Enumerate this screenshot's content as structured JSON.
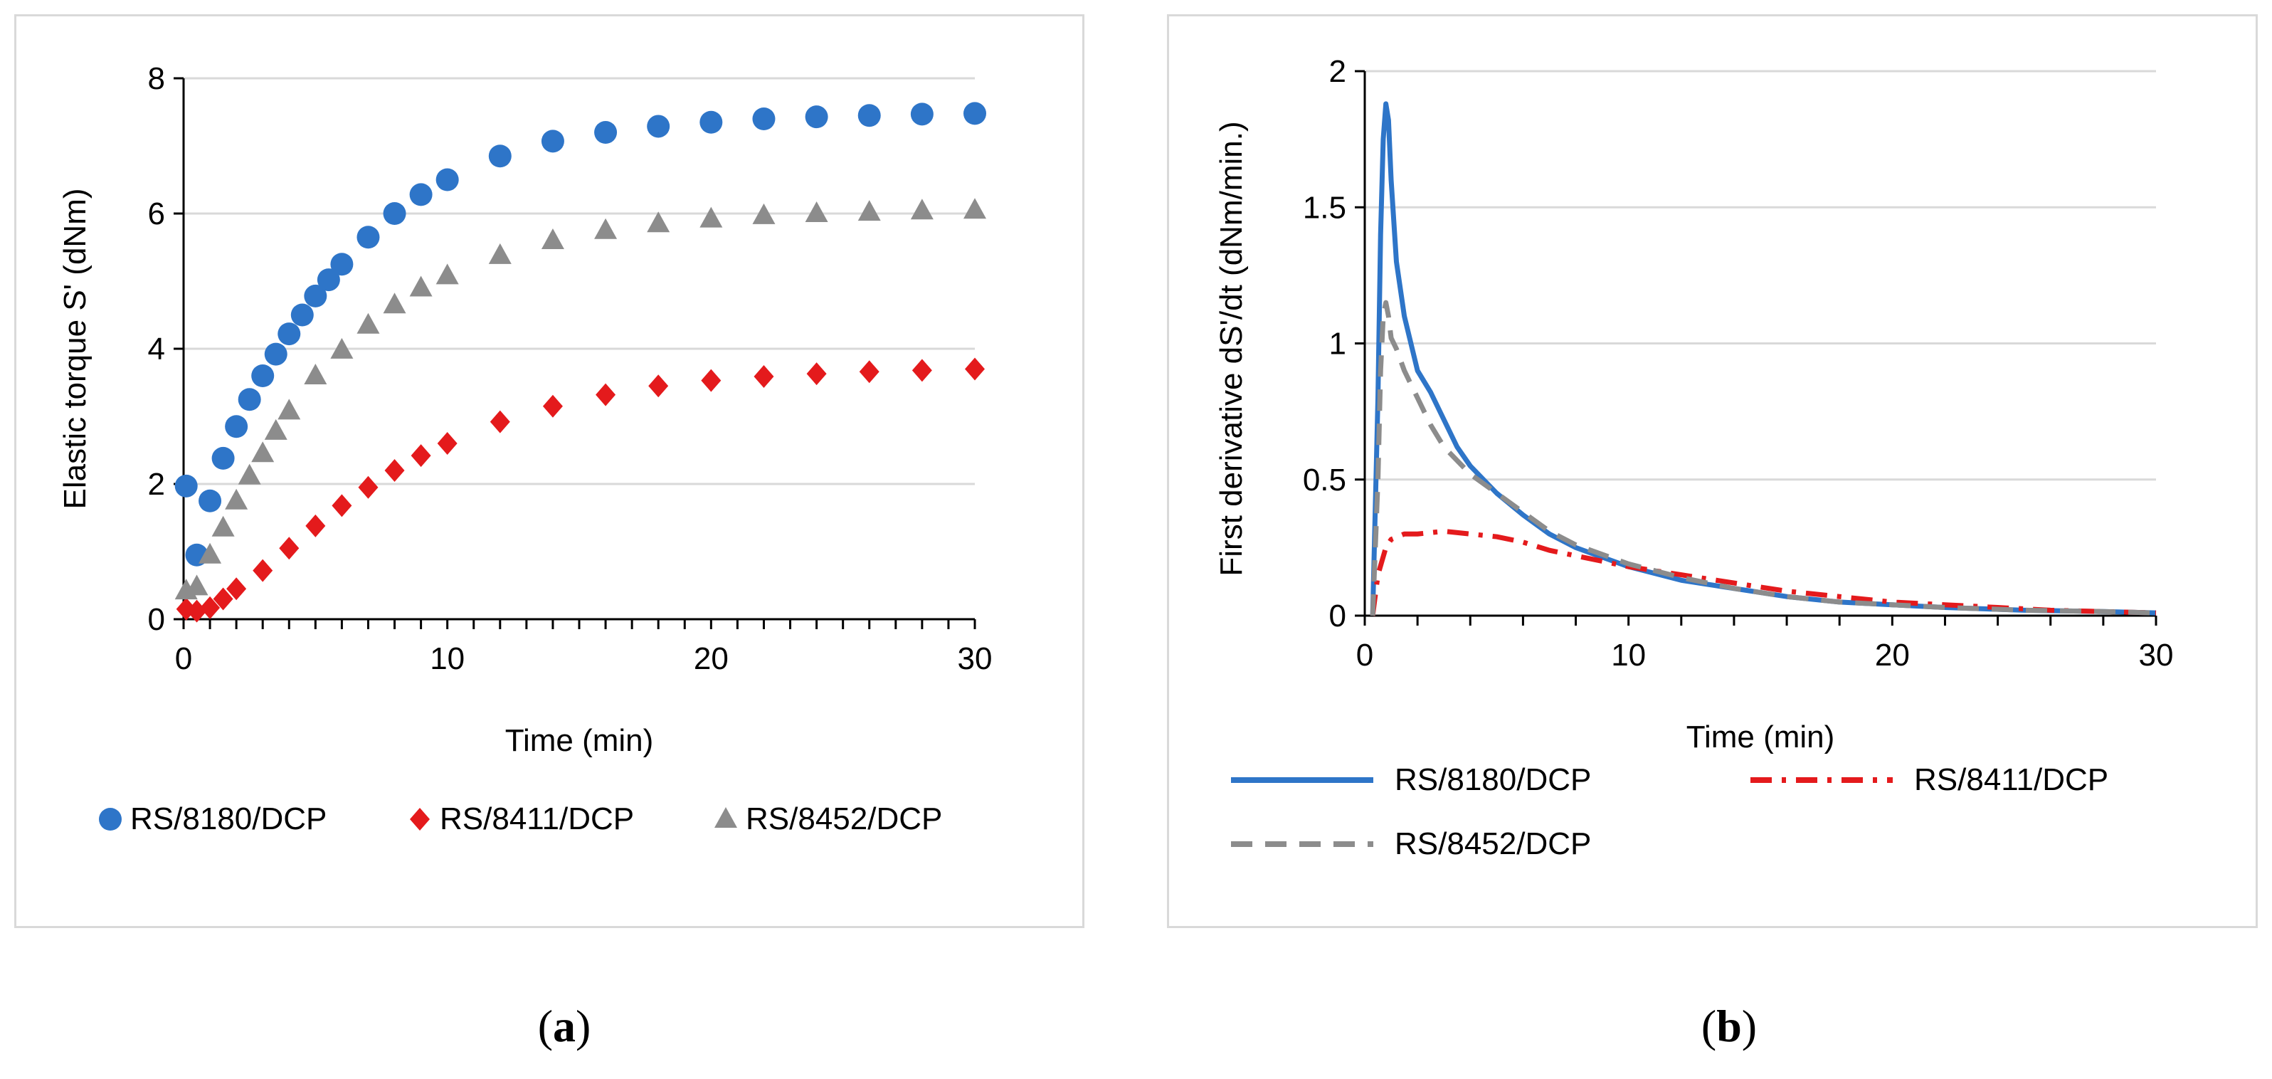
{
  "panels": [
    {
      "caption_prefix": "(",
      "caption_letter": "a",
      "caption_suffix": ")"
    },
    {
      "caption_prefix": "(",
      "caption_letter": "b",
      "caption_suffix": ")"
    }
  ],
  "chart_data": [
    {
      "type": "scatter",
      "xlabel": "Time (min)",
      "ylabel": "Elastic torque S' (dNm)",
      "xlim": [
        0,
        30
      ],
      "ylim": [
        0,
        8
      ],
      "xticks": [
        0,
        10,
        20,
        30
      ],
      "yticks": [
        0,
        2,
        4,
        6,
        8
      ],
      "grid": true,
      "legend_position": "bottom",
      "series": [
        {
          "name": "RS/8180/DCP",
          "color": "#2e75c8",
          "marker": "circle",
          "x": [
            0.1,
            0.5,
            1.0,
            1.5,
            2.0,
            2.5,
            3.0,
            3.5,
            4.0,
            4.5,
            5.0,
            5.5,
            6.0,
            7.0,
            8.0,
            9.0,
            10.0,
            12.0,
            14.0,
            16.0,
            18.0,
            20.0,
            22.0,
            24.0,
            26.0,
            28.0,
            30.0
          ],
          "y": [
            1.97,
            0.95,
            1.75,
            2.38,
            2.85,
            3.25,
            3.6,
            3.92,
            4.22,
            4.5,
            4.78,
            5.02,
            5.25,
            5.65,
            6.0,
            6.28,
            6.5,
            6.85,
            7.07,
            7.2,
            7.29,
            7.35,
            7.4,
            7.43,
            7.45,
            7.47,
            7.48
          ]
        },
        {
          "name": "RS/8411/DCP",
          "color": "#e41a1c",
          "marker": "diamond",
          "x": [
            0.1,
            0.5,
            1.0,
            1.5,
            2.0,
            3.0,
            4.0,
            5.0,
            6.0,
            7.0,
            8.0,
            9.0,
            10.0,
            12.0,
            14.0,
            16.0,
            18.0,
            20.0,
            22.0,
            24.0,
            26.0,
            28.0,
            30.0
          ],
          "y": [
            0.15,
            0.12,
            0.17,
            0.3,
            0.45,
            0.72,
            1.05,
            1.38,
            1.68,
            1.95,
            2.2,
            2.42,
            2.6,
            2.92,
            3.15,
            3.32,
            3.45,
            3.53,
            3.59,
            3.63,
            3.66,
            3.68,
            3.7
          ]
        },
        {
          "name": "RS/8452/DCP",
          "color": "#8c8c8c",
          "marker": "triangle",
          "x": [
            0.1,
            0.5,
            1.0,
            1.5,
            2.0,
            2.5,
            3.0,
            3.5,
            4.0,
            5.0,
            6.0,
            7.0,
            8.0,
            9.0,
            10.0,
            12.0,
            14.0,
            16.0,
            18.0,
            20.0,
            22.0,
            24.0,
            26.0,
            28.0,
            30.0
          ],
          "y": [
            0.42,
            0.48,
            0.95,
            1.35,
            1.75,
            2.12,
            2.45,
            2.78,
            3.08,
            3.6,
            3.98,
            4.35,
            4.65,
            4.9,
            5.08,
            5.38,
            5.6,
            5.75,
            5.85,
            5.92,
            5.97,
            6.0,
            6.02,
            6.04,
            6.05
          ]
        }
      ]
    },
    {
      "type": "line",
      "xlabel": "Time (min)",
      "ylabel": "First derivative  dS'/dt (dNm/min.)",
      "xlim": [
        0,
        30
      ],
      "ylim": [
        0,
        2
      ],
      "xticks": [
        0,
        10,
        20,
        30
      ],
      "yticks": [
        0,
        0.5,
        1,
        1.5,
        2
      ],
      "grid": true,
      "legend_position": "bottom",
      "series": [
        {
          "name": "RS/8180/DCP",
          "color": "#2e75c8",
          "dash": "solid",
          "x": [
            0.3,
            0.5,
            0.6,
            0.7,
            0.8,
            0.9,
            1.0,
            1.2,
            1.5,
            2.0,
            2.5,
            3.0,
            3.5,
            4.0,
            5.0,
            6.0,
            7.0,
            8.0,
            10.0,
            12.0,
            14.0,
            16.0,
            18.0,
            20.0,
            22.0,
            25.0,
            28.0,
            30.0
          ],
          "y": [
            0.0,
            0.8,
            1.4,
            1.75,
            1.88,
            1.82,
            1.6,
            1.3,
            1.1,
            0.9,
            0.82,
            0.72,
            0.62,
            0.55,
            0.45,
            0.37,
            0.3,
            0.25,
            0.18,
            0.13,
            0.1,
            0.07,
            0.05,
            0.04,
            0.03,
            0.02,
            0.015,
            0.01
          ]
        },
        {
          "name": "RS/8411/DCP",
          "color": "#e41a1c",
          "dash": "dashdot",
          "x": [
            0.3,
            0.5,
            0.8,
            1.0,
            1.5,
            2.0,
            3.0,
            4.0,
            5.0,
            6.0,
            7.0,
            8.0,
            9.0,
            10.0,
            12.0,
            14.0,
            16.0,
            18.0,
            20.0,
            22.0,
            24.0,
            26.0,
            28.0,
            30.0
          ],
          "y": [
            0.0,
            0.15,
            0.25,
            0.28,
            0.3,
            0.3,
            0.31,
            0.3,
            0.29,
            0.27,
            0.24,
            0.22,
            0.2,
            0.18,
            0.15,
            0.12,
            0.09,
            0.07,
            0.05,
            0.04,
            0.03,
            0.02,
            0.015,
            0.01
          ]
        },
        {
          "name": "RS/8452/DCP",
          "color": "#8c8c8c",
          "dash": "dashed",
          "x": [
            0.3,
            0.5,
            0.6,
            0.7,
            0.8,
            0.9,
            1.0,
            1.2,
            1.5,
            2.0,
            2.5,
            3.0,
            4.0,
            5.0,
            6.0,
            7.0,
            8.0,
            10.0,
            12.0,
            14.0,
            16.0,
            18.0,
            20.0,
            22.0,
            25.0,
            28.0,
            30.0
          ],
          "y": [
            0.0,
            0.5,
            0.9,
            1.1,
            1.15,
            1.1,
            1.02,
            0.98,
            0.9,
            0.8,
            0.7,
            0.62,
            0.52,
            0.45,
            0.38,
            0.31,
            0.26,
            0.19,
            0.14,
            0.1,
            0.07,
            0.05,
            0.04,
            0.03,
            0.02,
            0.015,
            0.01
          ]
        }
      ]
    }
  ]
}
